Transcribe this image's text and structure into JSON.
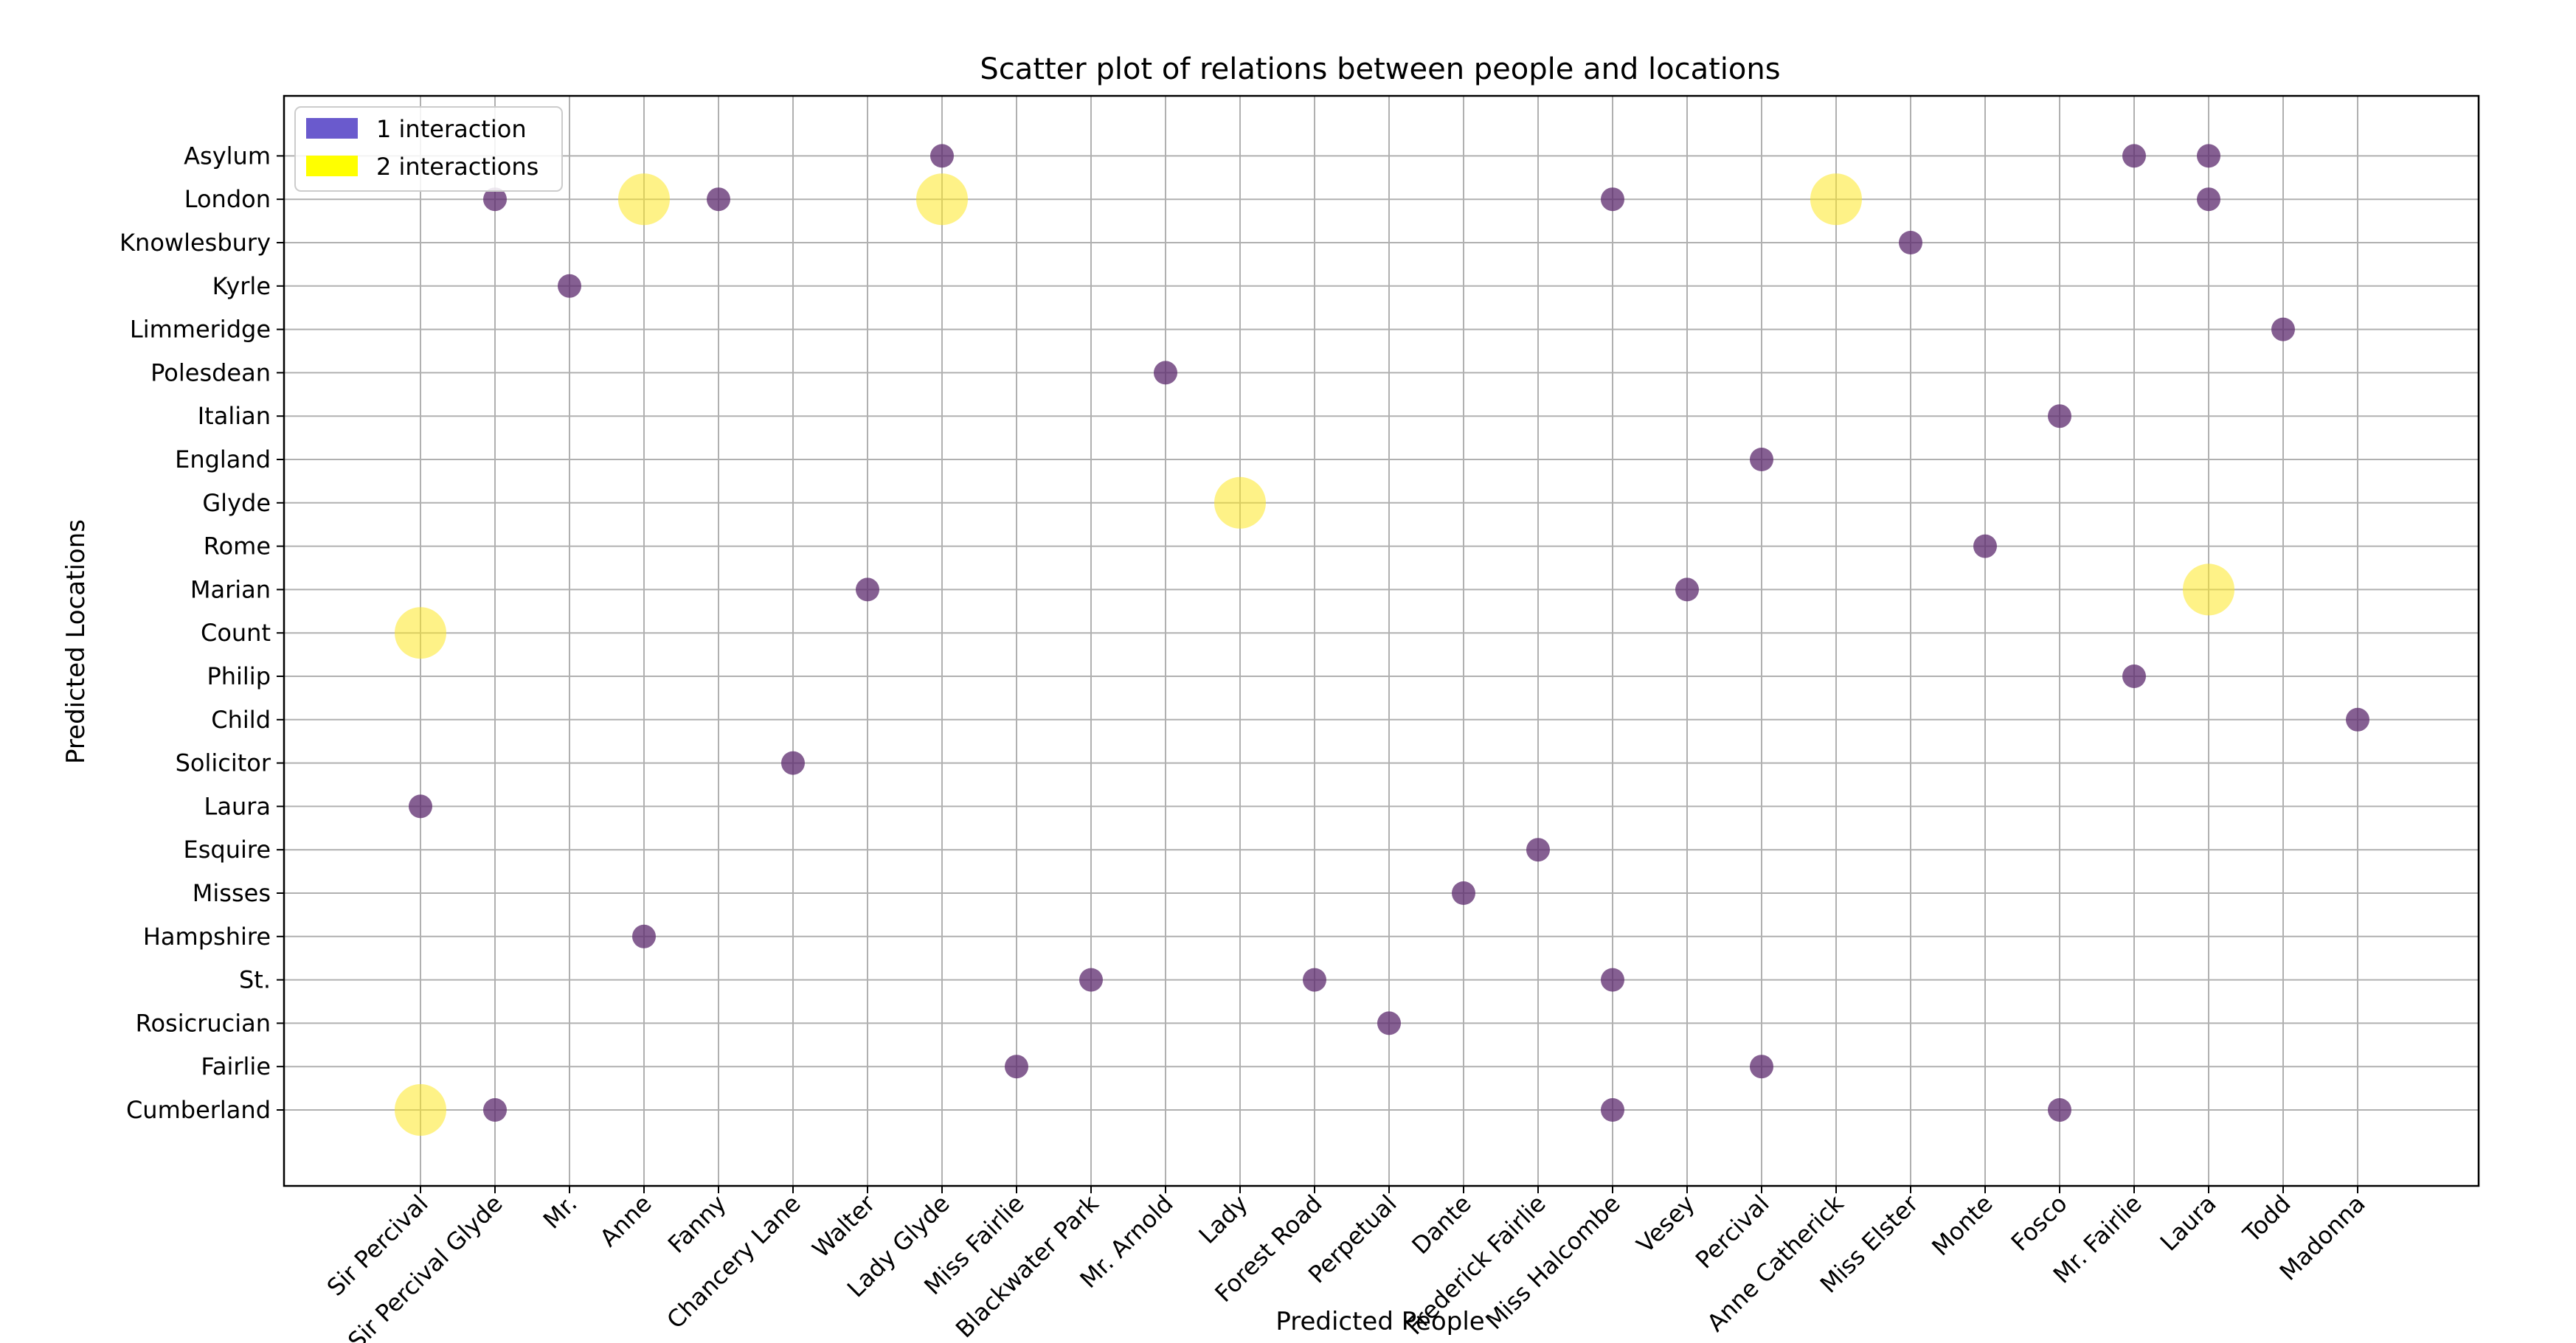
{
  "chart_data": {
    "type": "scatter",
    "title": "Scatter plot of relations between people and locations",
    "xlabel": "Predicted People",
    "ylabel": "Predicted Locations",
    "grid": true,
    "legend_position": "top-left",
    "x_categories": [
      "Sir Percival",
      "Sir Percival Glyde",
      "Mr.",
      "Anne",
      "Fanny",
      "Chancery Lane",
      "Walter",
      "Lady Glyde",
      "Miss Fairlie",
      "Blackwater Park",
      "Mr. Arnold",
      "Lady",
      "Forest Road",
      "Perpetual",
      "Dante",
      "Frederick Fairlie",
      "Miss Halcombe",
      "Vesey",
      "Percival",
      "Anne Catherick",
      "Miss Elster",
      "Monte",
      "Fosco",
      "Mr. Fairlie",
      "Laura",
      "Todd",
      "Madonna"
    ],
    "y_categories": [
      "Cumberland",
      "Fairlie",
      "Rosicrucian",
      "St.",
      "Hampshire",
      "Misses",
      "Esquire",
      "Laura",
      "Solicitor",
      "Child",
      "Philip",
      "Count",
      "Marian",
      "Rome",
      "Glyde",
      "England",
      "Italian",
      "Polesdean",
      "Limmeridge",
      "Kyrle",
      "Knowlesbury",
      "London",
      "Asylum"
    ],
    "legend": [
      {
        "label": "1 interaction",
        "color": "#6a5acd"
      },
      {
        "label": "2 interactions",
        "color": "#ffff00"
      }
    ],
    "colors": {
      "one": "#5c2a6e",
      "two": "#fde725"
    },
    "points": [
      {
        "x": "Sir Percival",
        "y": "Cumberland",
        "interactions": 2
      },
      {
        "x": "Sir Percival",
        "y": "Count",
        "interactions": 2
      },
      {
        "x": "Sir Percival",
        "y": "Laura",
        "interactions": 1
      },
      {
        "x": "Sir Percival Glyde",
        "y": "Cumberland",
        "interactions": 1
      },
      {
        "x": "Sir Percival Glyde",
        "y": "London",
        "interactions": 1
      },
      {
        "x": "Mr.",
        "y": "Kyrle",
        "interactions": 1
      },
      {
        "x": "Anne",
        "y": "London",
        "interactions": 2
      },
      {
        "x": "Anne",
        "y": "Hampshire",
        "interactions": 1
      },
      {
        "x": "Fanny",
        "y": "London",
        "interactions": 1
      },
      {
        "x": "Chancery Lane",
        "y": "Solicitor",
        "interactions": 1
      },
      {
        "x": "Walter",
        "y": "Marian",
        "interactions": 1
      },
      {
        "x": "Lady Glyde",
        "y": "Asylum",
        "interactions": 1
      },
      {
        "x": "Lady Glyde",
        "y": "London",
        "interactions": 2
      },
      {
        "x": "Miss Fairlie",
        "y": "Fairlie",
        "interactions": 1
      },
      {
        "x": "Blackwater Park",
        "y": "St.",
        "interactions": 1
      },
      {
        "x": "Mr. Arnold",
        "y": "Polesdean",
        "interactions": 1
      },
      {
        "x": "Lady",
        "y": "Glyde",
        "interactions": 2
      },
      {
        "x": "Forest Road",
        "y": "St.",
        "interactions": 1
      },
      {
        "x": "Perpetual",
        "y": "Rosicrucian",
        "interactions": 1
      },
      {
        "x": "Dante",
        "y": "Misses",
        "interactions": 1
      },
      {
        "x": "Frederick Fairlie",
        "y": "Esquire",
        "interactions": 1
      },
      {
        "x": "Miss Halcombe",
        "y": "London",
        "interactions": 1
      },
      {
        "x": "Miss Halcombe",
        "y": "St.",
        "interactions": 1
      },
      {
        "x": "Miss Halcombe",
        "y": "Cumberland",
        "interactions": 1
      },
      {
        "x": "Vesey",
        "y": "Marian",
        "interactions": 1
      },
      {
        "x": "Percival",
        "y": "England",
        "interactions": 1
      },
      {
        "x": "Percival",
        "y": "Fairlie",
        "interactions": 1
      },
      {
        "x": "Anne Catherick",
        "y": "London",
        "interactions": 2
      },
      {
        "x": "Miss Elster",
        "y": "Knowlesbury",
        "interactions": 1
      },
      {
        "x": "Monte",
        "y": "Rome",
        "interactions": 1
      },
      {
        "x": "Fosco",
        "y": "Italian",
        "interactions": 1
      },
      {
        "x": "Fosco",
        "y": "Cumberland",
        "interactions": 1
      },
      {
        "x": "Mr. Fairlie",
        "y": "Asylum",
        "interactions": 1
      },
      {
        "x": "Mr. Fairlie",
        "y": "Philip",
        "interactions": 1
      },
      {
        "x": "Laura",
        "y": "Asylum",
        "interactions": 1
      },
      {
        "x": "Laura",
        "y": "London",
        "interactions": 1
      },
      {
        "x": "Laura",
        "y": "Marian",
        "interactions": 2
      },
      {
        "x": "Todd",
        "y": "Limmeridge",
        "interactions": 1
      },
      {
        "x": "Madonna",
        "y": "Child",
        "interactions": 1
      }
    ]
  }
}
